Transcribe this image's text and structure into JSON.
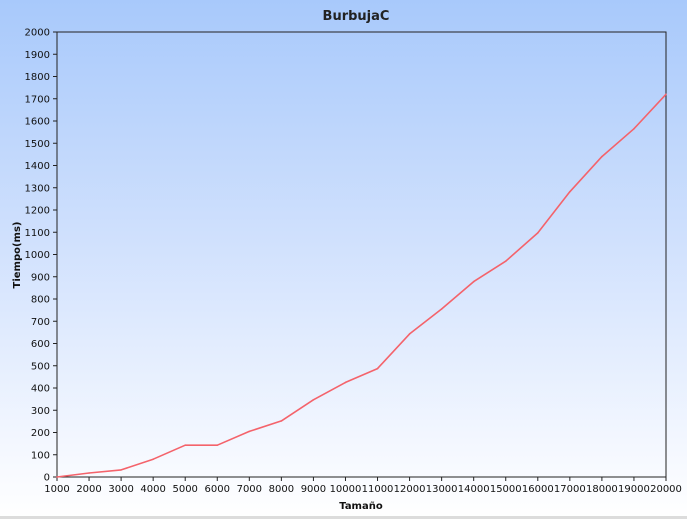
{
  "chart_data": {
    "type": "line",
    "title": "BurbujaC",
    "xlabel": "Tamaño",
    "ylabel": "Tiempo(ms)",
    "xlim": [
      1000,
      20000
    ],
    "ylim": [
      0,
      2000
    ],
    "xticks": [
      1000,
      2000,
      3000,
      4000,
      5000,
      6000,
      7000,
      8000,
      9000,
      10000,
      11000,
      12000,
      13000,
      14000,
      15000,
      16000,
      17000,
      18000,
      19000,
      20000
    ],
    "yticks": [
      0,
      100,
      200,
      300,
      400,
      500,
      600,
      700,
      800,
      900,
      1000,
      1100,
      1200,
      1300,
      1400,
      1500,
      1600,
      1700,
      1800,
      1900,
      2000
    ],
    "grid": false,
    "legend": "none",
    "series": [
      {
        "color": "#f4636b",
        "x": [
          1000,
          2000,
          3000,
          4000,
          5000,
          6000,
          7000,
          8000,
          9000,
          10000,
          11000,
          12000,
          13000,
          14000,
          15000,
          16000,
          17000,
          18000,
          19000,
          20000
        ],
        "values": [
          0,
          18,
          32,
          80,
          143,
          143,
          205,
          252,
          347,
          425,
          487,
          643,
          755,
          878,
          970,
          1097,
          1282,
          1440,
          1565,
          1720
        ]
      }
    ]
  }
}
